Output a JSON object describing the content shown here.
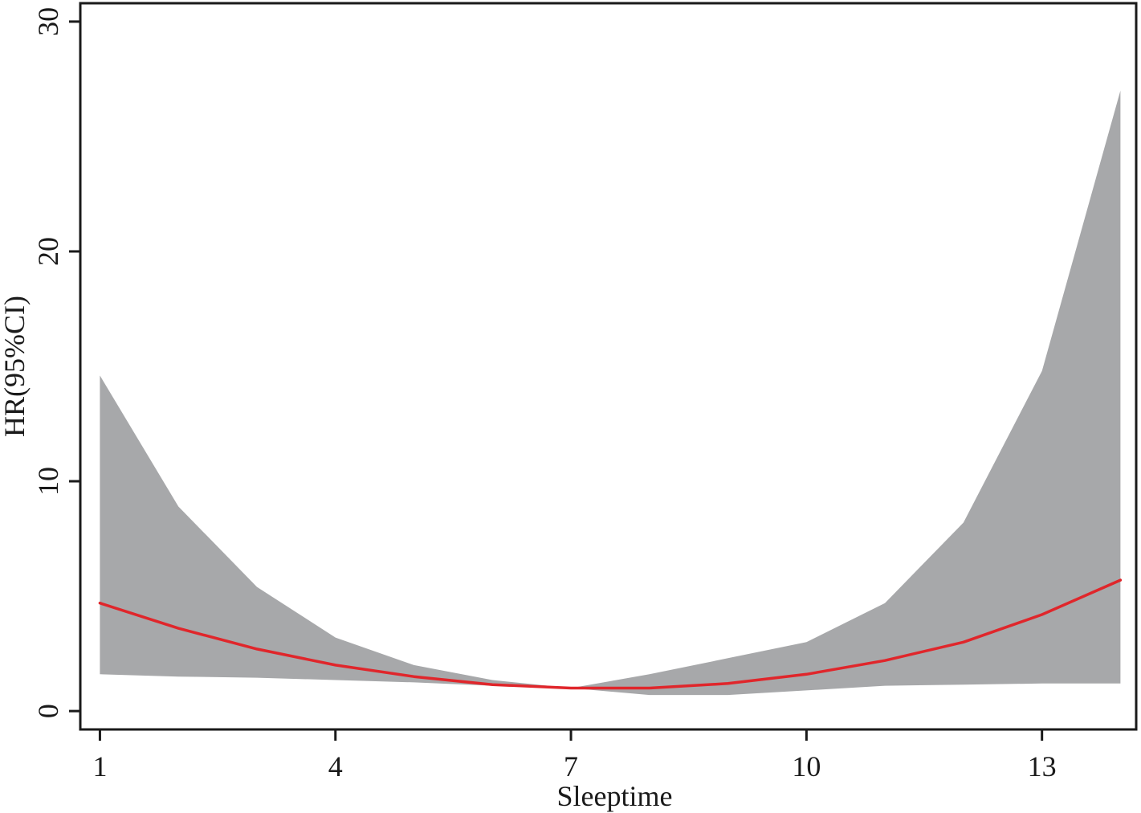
{
  "chart_data": {
    "type": "area",
    "xlabel": "Sleeptime",
    "ylabel": "HR(95%CI)",
    "xlim": [
      0.75,
      14.2
    ],
    "ylim": [
      -0.8,
      30.8
    ],
    "xticks": [
      1,
      4,
      7,
      10,
      13
    ],
    "yticks": [
      0,
      10,
      20,
      30
    ],
    "grid": false,
    "legend": "none",
    "x": [
      1,
      2,
      3,
      4,
      5,
      6,
      7,
      8,
      9,
      10,
      11,
      12,
      13,
      14
    ],
    "series": [
      {
        "kind": "band",
        "upper": [
          14.6,
          8.9,
          5.4,
          3.2,
          2.0,
          1.35,
          1.0,
          1.6,
          2.3,
          3.0,
          4.7,
          8.2,
          14.8,
          27.0
        ],
        "lower": [
          1.6,
          1.5,
          1.45,
          1.35,
          1.25,
          1.1,
          1.0,
          0.7,
          0.7,
          0.9,
          1.1,
          1.15,
          1.2,
          1.2
        ],
        "color": "#a7a8aa"
      },
      {
        "kind": "line",
        "values": [
          4.7,
          3.6,
          2.7,
          2.0,
          1.5,
          1.15,
          1.0,
          1.0,
          1.2,
          1.6,
          2.2,
          3.0,
          4.2,
          5.7
        ],
        "color": "#e0262b"
      }
    ]
  }
}
